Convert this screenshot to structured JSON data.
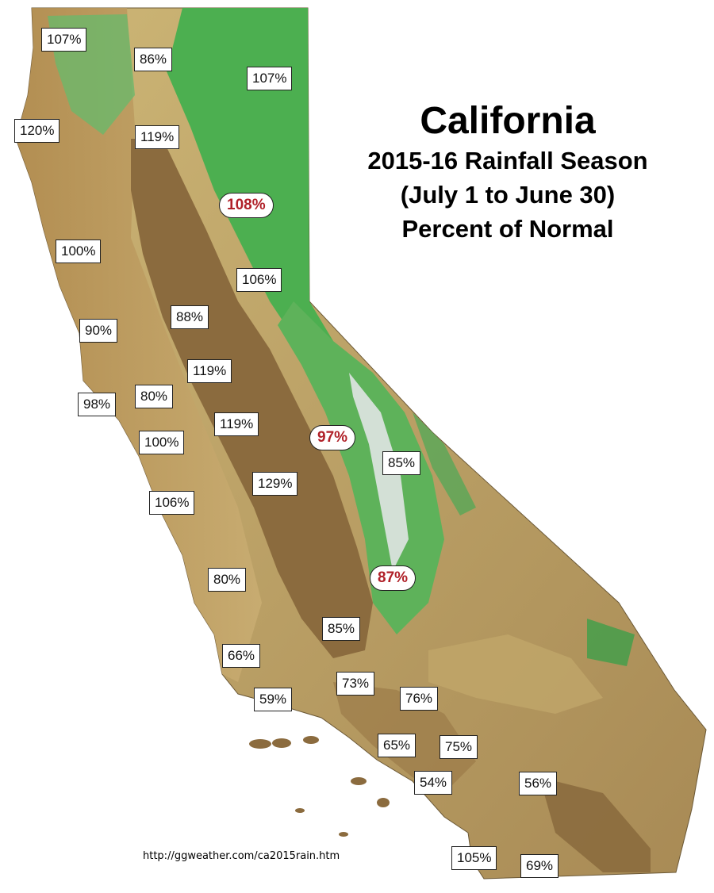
{
  "title": {
    "line1": "California",
    "line2": "2015-16 Rainfall Season",
    "line3": "(July 1 to June 30)",
    "line4": "Percent of Normal"
  },
  "source": "http://ggweather.com/ca2015rain.htm",
  "colors": {
    "valley": "#8b6b3e",
    "foothill": "#c2a56a",
    "desert": "#b79a5e",
    "forest": "#4caf50",
    "highlight_text": "#b02028"
  },
  "labels": [
    {
      "id": "crescent-city",
      "text": "107%",
      "highlight": false
    },
    {
      "id": "yreka",
      "text": "86%",
      "highlight": false
    },
    {
      "id": "alturas",
      "text": "107%",
      "highlight": false
    },
    {
      "id": "eureka",
      "text": "120%",
      "highlight": false
    },
    {
      "id": "redding",
      "text": "119%",
      "highlight": false
    },
    {
      "id": "northern-sierra",
      "text": "108%",
      "highlight": true
    },
    {
      "id": "ukiah",
      "text": "100%",
      "highlight": false
    },
    {
      "id": "blue-canyon",
      "text": "106%",
      "highlight": false
    },
    {
      "id": "santa-rosa",
      "text": "90%",
      "highlight": false
    },
    {
      "id": "sacramento",
      "text": "88%",
      "highlight": false
    },
    {
      "id": "stockton",
      "text": "119%",
      "highlight": false
    },
    {
      "id": "san-francisco",
      "text": "98%",
      "highlight": false
    },
    {
      "id": "oakland",
      "text": "80%",
      "highlight": false
    },
    {
      "id": "modesto",
      "text": "119%",
      "highlight": false
    },
    {
      "id": "san-joaquin-sierra",
      "text": "97%",
      "highlight": true
    },
    {
      "id": "san-jose",
      "text": "100%",
      "highlight": false
    },
    {
      "id": "bishop",
      "text": "85%",
      "highlight": false
    },
    {
      "id": "fresno",
      "text": "129%",
      "highlight": false
    },
    {
      "id": "salinas",
      "text": "106%",
      "highlight": false
    },
    {
      "id": "tulare-basin",
      "text": "87%",
      "highlight": true
    },
    {
      "id": "paso-robles",
      "text": "80%",
      "highlight": false
    },
    {
      "id": "bakersfield",
      "text": "85%",
      "highlight": false
    },
    {
      "id": "santa-maria",
      "text": "66%",
      "highlight": false
    },
    {
      "id": "sandberg",
      "text": "73%",
      "highlight": false
    },
    {
      "id": "santa-barbara",
      "text": "59%",
      "highlight": false
    },
    {
      "id": "lancaster",
      "text": "76%",
      "highlight": false
    },
    {
      "id": "los-angeles",
      "text": "65%",
      "highlight": false
    },
    {
      "id": "riverside",
      "text": "75%",
      "highlight": false
    },
    {
      "id": "long-beach",
      "text": "54%",
      "highlight": false
    },
    {
      "id": "palm-springs",
      "text": "56%",
      "highlight": false
    },
    {
      "id": "san-diego",
      "text": "105%",
      "highlight": false
    },
    {
      "id": "el-centro",
      "text": "69%",
      "highlight": false
    }
  ]
}
